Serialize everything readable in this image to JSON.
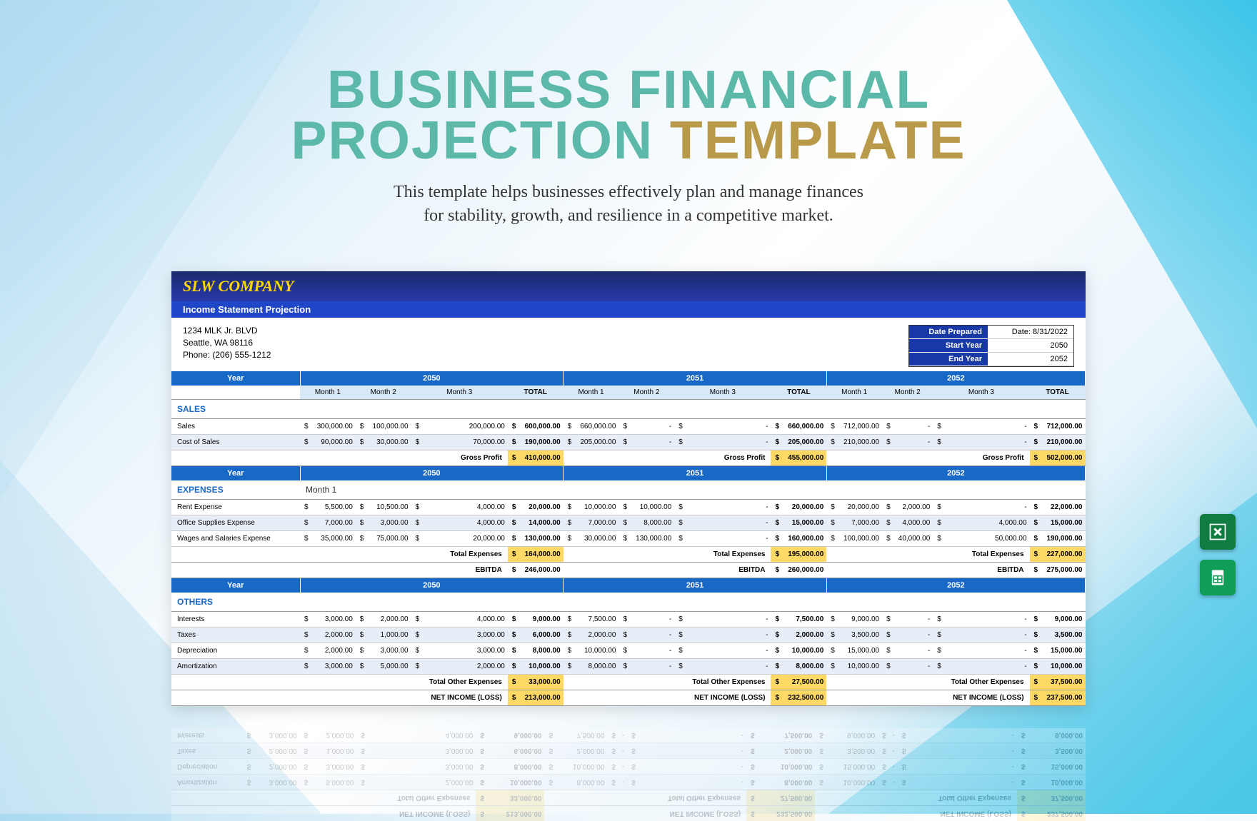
{
  "title": {
    "line1": "BUSINESS FINANCIAL",
    "line2a": "PROJECTION",
    "line2b": " TEMPLATE"
  },
  "subtitle": {
    "l1": "This template helps businesses effectively plan and manage finances",
    "l2": "for stability, growth, and resilience in a competitive market."
  },
  "company": "SLW COMPANY",
  "subheader": "Income Statement Projection",
  "address": {
    "l1": "1234 MLK Jr. BLVD",
    "l2": "Seattle, WA 98116",
    "l3": "Phone: (206) 555-1212"
  },
  "meta": {
    "prep_l": "Date Prepared",
    "prep_v": "Date: 8/31/2022",
    "start_l": "Start Year",
    "start_v": "2050",
    "end_l": "End Year",
    "end_v": "2052"
  },
  "years": [
    "2050",
    "2051",
    "2052"
  ],
  "months": [
    "Month 1",
    "Month 2",
    "Month 3",
    "TOTAL"
  ],
  "yearLabel": "Year",
  "sections": {
    "sales": {
      "header": "SALES",
      "rows": [
        {
          "label": "Sales",
          "y": [
            [
              "300,000.00",
              "100,000.00",
              "200,000.00",
              "600,000.00"
            ],
            [
              "660,000.00",
              "-",
              "-",
              "660,000.00"
            ],
            [
              "712,000.00",
              "-",
              "-",
              "712,000.00"
            ]
          ]
        },
        {
          "label": "Cost of Sales",
          "alt": true,
          "y": [
            [
              "90,000.00",
              "30,000.00",
              "70,000.00",
              "190,000.00"
            ],
            [
              "205,000.00",
              "-",
              "-",
              "205,000.00"
            ],
            [
              "210,000.00",
              "-",
              "-",
              "210,000.00"
            ]
          ]
        }
      ],
      "sumLabel": "Gross Profit",
      "sums": [
        "410,000.00",
        "455,000.00",
        "502,000.00"
      ]
    },
    "expenses": {
      "header": "EXPENSES",
      "subhead": "Month 1",
      "rows": [
        {
          "label": "Rent Expense",
          "y": [
            [
              "5,500.00",
              "10,500.00",
              "4,000.00",
              "20,000.00"
            ],
            [
              "10,000.00",
              "10,000.00",
              "-",
              "20,000.00"
            ],
            [
              "20,000.00",
              "2,000.00",
              "-",
              "22,000.00"
            ]
          ]
        },
        {
          "label": "Office Supplies Expense",
          "alt": true,
          "y": [
            [
              "7,000.00",
              "3,000.00",
              "4,000.00",
              "14,000.00"
            ],
            [
              "7,000.00",
              "8,000.00",
              "-",
              "15,000.00"
            ],
            [
              "7,000.00",
              "4,000.00",
              "4,000.00",
              "15,000.00"
            ]
          ]
        },
        {
          "label": "Wages and Salaries Expense",
          "y": [
            [
              "35,000.00",
              "75,000.00",
              "20,000.00",
              "130,000.00"
            ],
            [
              "30,000.00",
              "130,000.00",
              "-",
              "160,000.00"
            ],
            [
              "100,000.00",
              "40,000.00",
              "50,000.00",
              "190,000.00"
            ]
          ]
        }
      ],
      "sumLabel": "Total Expenses",
      "sums": [
        "164,000.00",
        "195,000.00",
        "227,000.00"
      ],
      "ebitdaLabel": "EBITDA",
      "ebitda": [
        "246,000.00",
        "260,000.00",
        "275,000.00"
      ]
    },
    "others": {
      "header": "OTHERS",
      "rows": [
        {
          "label": "Interests",
          "y": [
            [
              "3,000.00",
              "2,000.00",
              "4,000.00",
              "9,000.00"
            ],
            [
              "7,500.00",
              "-",
              "-",
              "7,500.00"
            ],
            [
              "9,000.00",
              "-",
              "-",
              "9,000.00"
            ]
          ]
        },
        {
          "label": "Taxes",
          "alt": true,
          "y": [
            [
              "2,000.00",
              "1,000.00",
              "3,000.00",
              "6,000.00"
            ],
            [
              "2,000.00",
              "-",
              "-",
              "2,000.00"
            ],
            [
              "3,500.00",
              "-",
              "-",
              "3,500.00"
            ]
          ]
        },
        {
          "label": "Depreciation",
          "y": [
            [
              "2,000.00",
              "3,000.00",
              "3,000.00",
              "8,000.00"
            ],
            [
              "10,000.00",
              "-",
              "-",
              "10,000.00"
            ],
            [
              "15,000.00",
              "-",
              "-",
              "15,000.00"
            ]
          ]
        },
        {
          "label": "Amortization",
          "alt": true,
          "y": [
            [
              "3,000.00",
              "5,000.00",
              "2,000.00",
              "10,000.00"
            ],
            [
              "8,000.00",
              "-",
              "-",
              "8,000.00"
            ],
            [
              "10,000.00",
              "-",
              "-",
              "10,000.00"
            ]
          ]
        }
      ],
      "sumLabel": "Total Other Expenses",
      "sums": [
        "33,000.00",
        "27,500.00",
        "37,500.00"
      ],
      "netLabel": "NET INCOME (LOSS)",
      "net": [
        "213,000.00",
        "232,500.00",
        "237,500.00"
      ]
    }
  },
  "colors": {
    "blue_hdr": "#1868c8",
    "gold": "#ffd966",
    "lt": "#d8e8f8",
    "alt": "#e8eef8"
  }
}
